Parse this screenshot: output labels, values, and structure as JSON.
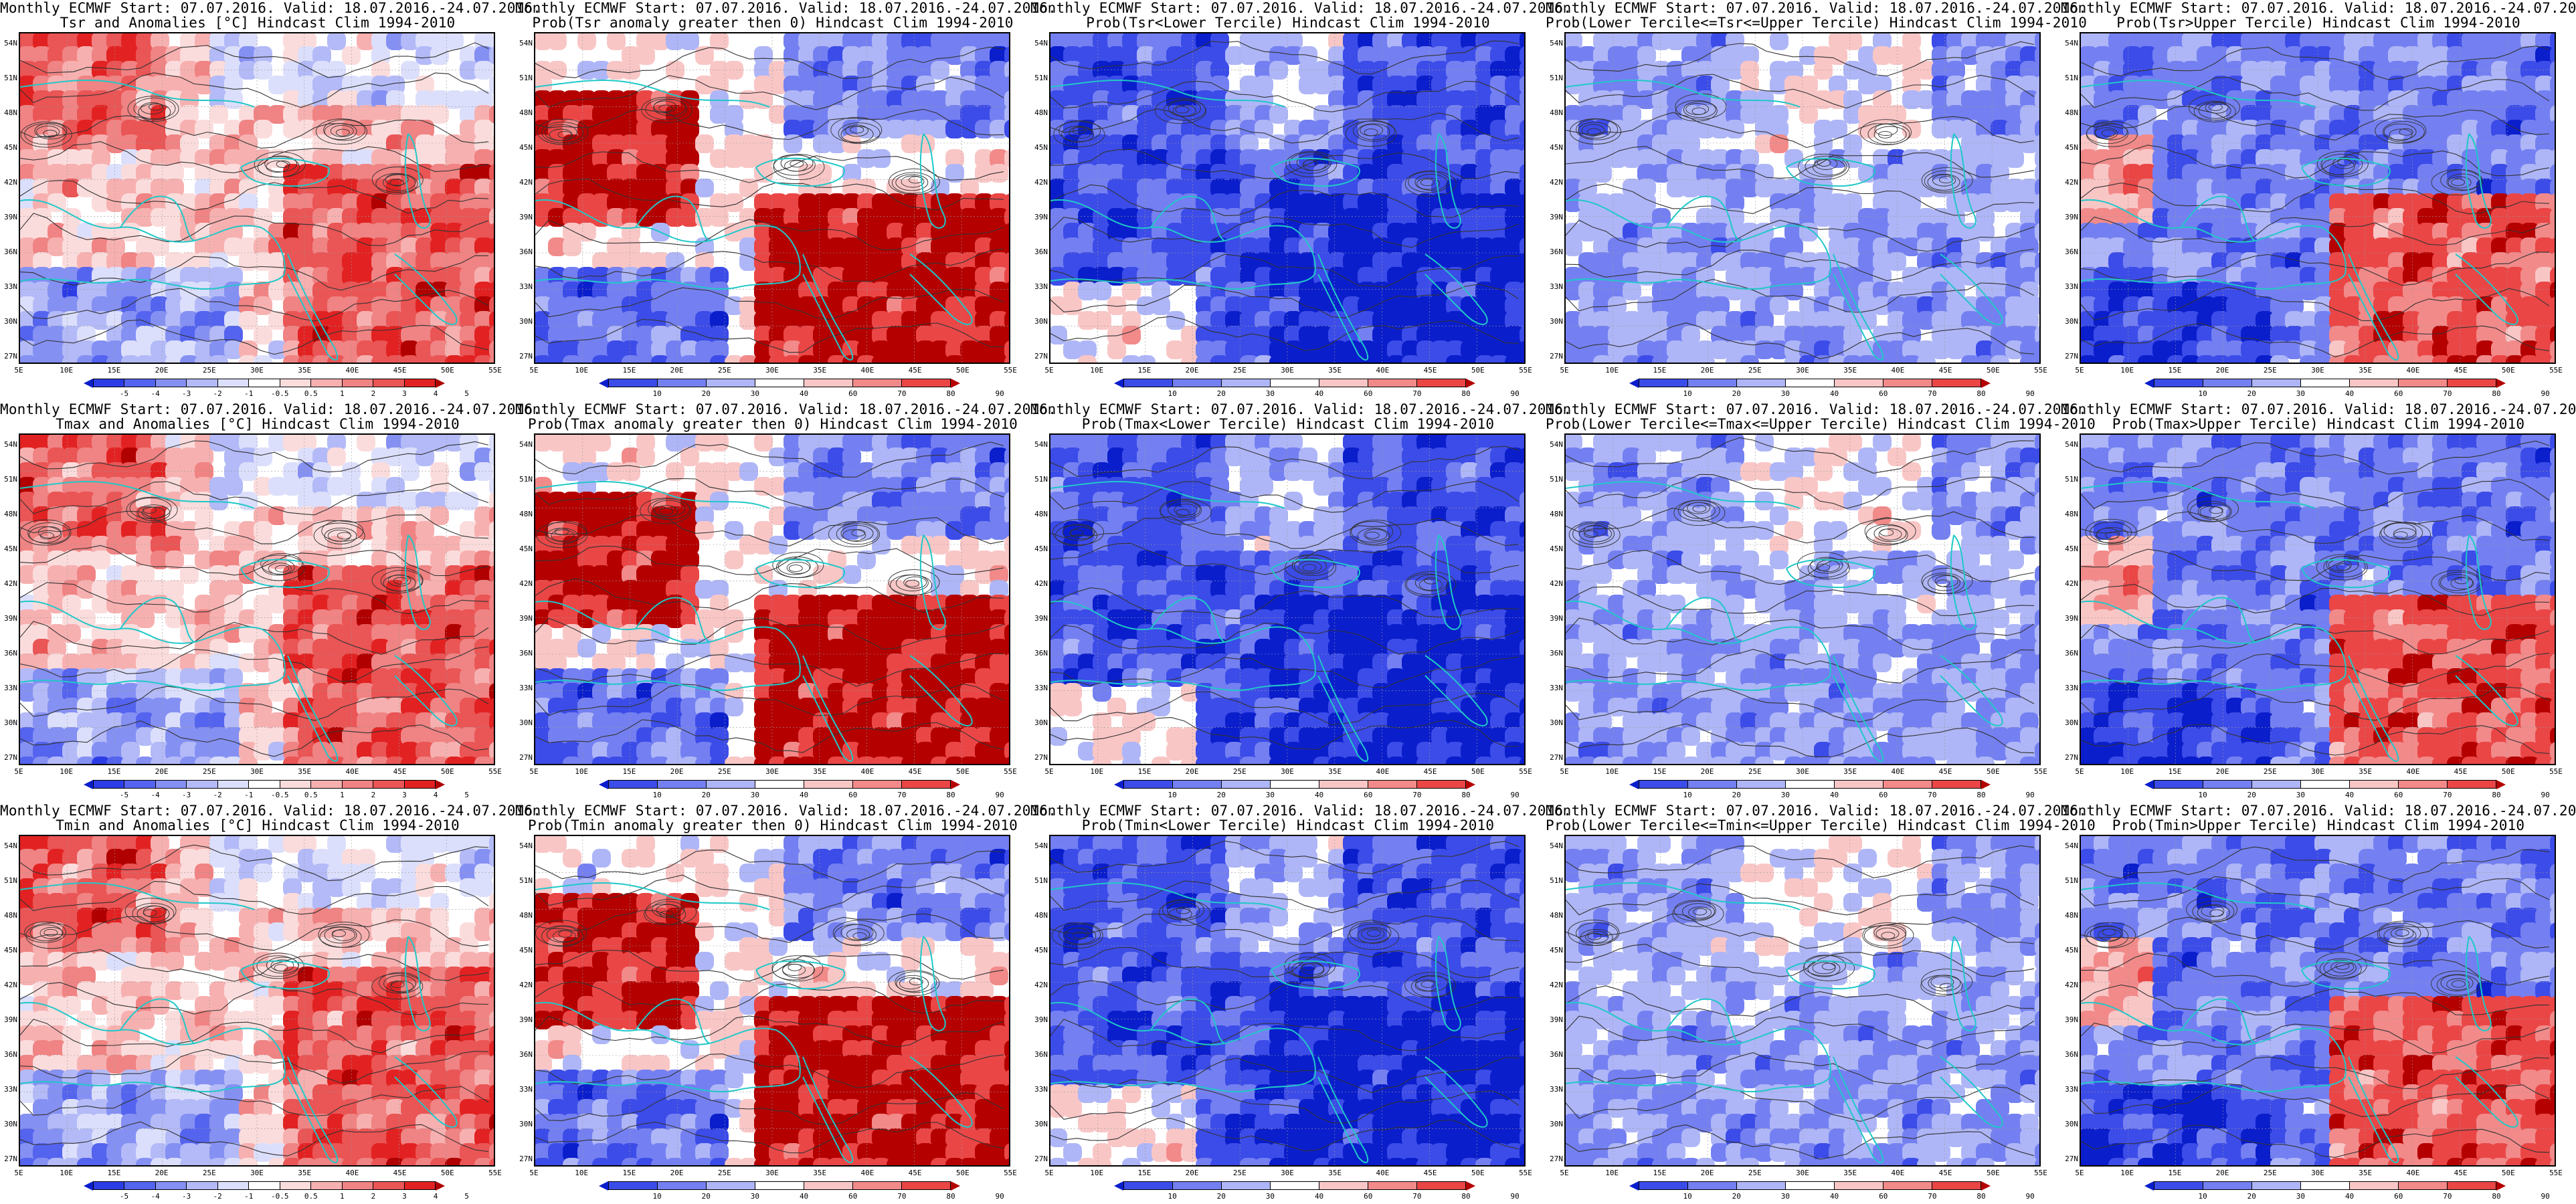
{
  "longitude_labels": [
    "5E",
    "10E",
    "15E",
    "20E",
    "25E",
    "30E",
    "35E",
    "40E",
    "45E",
    "50E",
    "55E"
  ],
  "latitude_labels": [
    "54N",
    "51N",
    "48N",
    "45N",
    "42N",
    "39N",
    "36N",
    "33N",
    "30N",
    "27N"
  ],
  "anomaly_scale": {
    "labels": [
      "-5",
      "-4",
      "-3",
      "-2",
      "-1",
      "-0.5",
      "0.5",
      "1",
      "2",
      "3",
      "4",
      "5"
    ],
    "colors": [
      "#0a1ecc",
      "#2c3de6",
      "#5464ee",
      "#8590f3",
      "#b3baf7",
      "#dcdffb",
      "#ffffff",
      "#fbdcdc",
      "#f7b0b0",
      "#f08383",
      "#ea5555",
      "#e22222",
      "#b00000"
    ]
  },
  "probability_scale": {
    "labels": [
      "10",
      "20",
      "30",
      "40",
      "60",
      "70",
      "80",
      "90"
    ],
    "colors": [
      "#0a1ecc",
      "#3c4ce8",
      "#7480f1",
      "#aeb6f7",
      "#ffffff",
      "#f9c6c6",
      "#f28a8a",
      "#ea4646",
      "#b50000"
    ]
  },
  "colors": {
    "coast": "#20c8c8",
    "contour": "#333333",
    "frame": "#000000"
  },
  "panels": [
    {
      "title_line1": "Monthly ECMWF Start: 07.07.2016. Valid: 18.07.2016.-24.07.2016.",
      "title_line2": "Tsr and Anomalies [°C] Hindcast Clim 1994-2010",
      "scale": "anomaly",
      "pattern": 0
    },
    {
      "title_line1": "Monthly ECMWF Start: 07.07.2016. Valid: 18.07.2016.-24.07.2016.",
      "title_line2": "Prob(Tsr anomaly greater then 0) Hindcast Clim 1994-2010",
      "scale": "probability",
      "pattern": 1
    },
    {
      "title_line1": "Monthly ECMWF Start: 07.07.2016. Valid: 18.07.2016.-24.07.2016.",
      "title_line2": "Prob(Tsr<Lower Tercile) Hindcast Clim 1994-2010",
      "scale": "probability",
      "pattern": 2
    },
    {
      "title_line1": "Monthly ECMWF Start: 07.07.2016. Valid: 18.07.2016.-24.07.2016.",
      "title_line2": "Prob(Lower Tercile<=Tsr<=Upper Tercile) Hindcast Clim 1994-2010",
      "scale": "probability",
      "pattern": 3
    },
    {
      "title_line1": "Monthly ECMWF Start: 07.07.2016. Valid: 18.07.2016.-24.07.2016.",
      "title_line2": "Prob(Tsr>Upper Tercile) Hindcast Clim 1994-2010",
      "scale": "probability",
      "pattern": 4
    },
    {
      "title_line1": "Monthly ECMWF Start: 07.07.2016. Valid: 18.07.2016.-24.07.2016.",
      "title_line2": "Tmax and Anomalies [°C] Hindcast Clim 1994-2010",
      "scale": "anomaly",
      "pattern": 0
    },
    {
      "title_line1": "Monthly ECMWF Start: 07.07.2016. Valid: 18.07.2016.-24.07.2016.",
      "title_line2": "Prob(Tmax anomaly greater then 0) Hindcast Clim 1994-2010",
      "scale": "probability",
      "pattern": 1
    },
    {
      "title_line1": "Monthly ECMWF Start: 07.07.2016. Valid: 18.07.2016.-24.07.2016.",
      "title_line2": "Prob(Tmax<Lower Tercile) Hindcast Clim 1994-2010",
      "scale": "probability",
      "pattern": 2
    },
    {
      "title_line1": "Monthly ECMWF Start: 07.07.2016. Valid: 18.07.2016.-24.07.2016.",
      "title_line2": "Prob(Lower Tercile<=Tmax<=Upper Tercile) Hindcast Clim 1994-2010",
      "scale": "probability",
      "pattern": 3
    },
    {
      "title_line1": "Monthly ECMWF Start: 07.07.2016. Valid: 18.07.2016.-24.07.2016.",
      "title_line2": "Prob(Tmax>Upper Tercile) Hindcast Clim 1994-2010",
      "scale": "probability",
      "pattern": 4
    },
    {
      "title_line1": "Monthly ECMWF Start: 07.07.2016. Valid: 18.07.2016.-24.07.2016.",
      "title_line2": "Tmin and Anomalies [°C] Hindcast Clim 1994-2010",
      "scale": "anomaly",
      "pattern": 0
    },
    {
      "title_line1": "Monthly ECMWF Start: 07.07.2016. Valid: 18.07.2016.-24.07.2016.",
      "title_line2": "Prob(Tmin anomaly greater then 0) Hindcast Clim 1994-2010",
      "scale": "probability",
      "pattern": 1
    },
    {
      "title_line1": "Monthly ECMWF Start: 07.07.2016. Valid: 18.07.2016.-24.07.2016.",
      "title_line2": "Prob(Tmin<Lower Tercile) Hindcast Clim 1994-2010",
      "scale": "probability",
      "pattern": 2
    },
    {
      "title_line1": "Monthly ECMWF Start: 07.07.2016. Valid: 18.07.2016.-24.07.2016.",
      "title_line2": "Prob(Lower Tercile<=Tmin<=Upper Tercile) Hindcast Clim 1994-2010",
      "scale": "probability",
      "pattern": 3
    },
    {
      "title_line1": "Monthly ECMWF Start: 07.07.2016. Valid: 18.07.2016.-24.07.2016.",
      "title_line2": "Prob(Tmin>Upper Tercile) Hindcast Clim 1994-2010",
      "scale": "probability",
      "pattern": 4
    }
  ]
}
